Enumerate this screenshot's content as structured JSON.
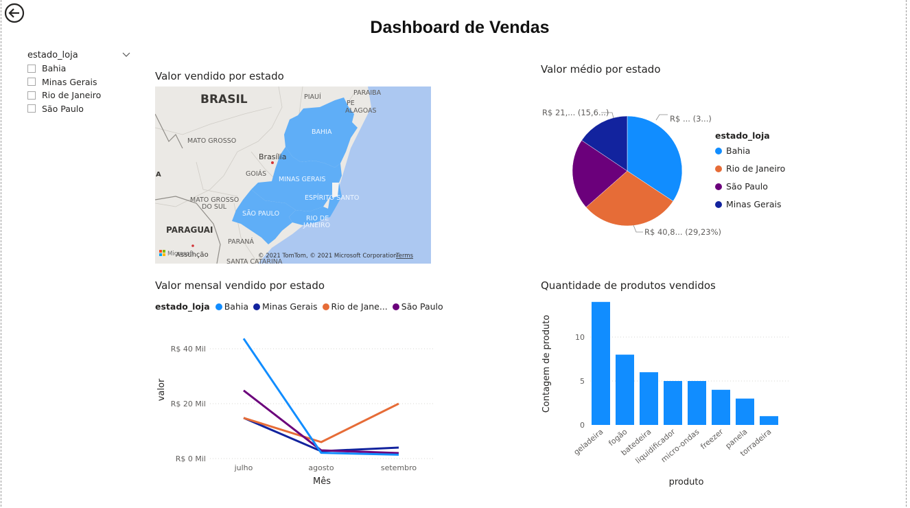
{
  "page": {
    "title": "Dashboard de Vendas"
  },
  "colors": {
    "bahia": "#118DFF",
    "minas": "#12239E",
    "rio": "#E66C37",
    "sp": "#6B007B",
    "map_highlight": "#5FAEF7",
    "water": "#ACC8F1"
  },
  "slicer": {
    "title": "estado_loja",
    "items": [
      "Bahia",
      "Minas Gerais",
      "Rio de Janeiro",
      "São Paulo"
    ]
  },
  "map_visual": {
    "title": "Valor vendido por estado",
    "labels": {
      "brasil": "BRASIL",
      "paraiba": "PARAIBA",
      "piaui": "PIAUÍ",
      "pe": "PE",
      "alagoas": "ALAGOAS",
      "bahia": "BAHIA",
      "mato_grosso": "MATO GROSSO",
      "brasilia": "Brasília",
      "goias": "GOIÁS",
      "minas": "MINAS GERAIS",
      "espirito": "ESPÍRITO SANTO",
      "ms1": "MATO GROSSO",
      "ms2": "DO SUL",
      "sao_paulo": "SÃO PAULO",
      "rio1": "RIO DE",
      "rio2": "JANEIRO",
      "paraguai": "PARAGUAI",
      "parana": "PARANÁ",
      "santa": "SANTA CATARINA",
      "assuncao": "Assunção",
      "a": "A"
    },
    "attribution": "© 2021 TomTom, © 2021 Microsoft Corporation",
    "terms": "Terms",
    "brand": "Microsoft"
  },
  "pie_visual": {
    "title": "Valor médio por estado",
    "legend_title": "estado_loja",
    "data_labels": {
      "sp_mg": "R$ 21,... (15,6...)",
      "bahia": "R$ ... (3...)",
      "rio": "R$ 40,8... (29,23%)"
    },
    "legend": [
      "Bahia",
      "Rio de Janeiro",
      "São Paulo",
      "Minas Gerais"
    ]
  },
  "line_visual": {
    "title": "Valor mensal vendido por estado",
    "legend_title": "estado_loja",
    "legend": [
      "Bahia",
      "Minas Gerais",
      "Rio de Jane...",
      "São Paulo"
    ],
    "xlabel": "Mês",
    "ylabel": "valor",
    "yticks": [
      "R$ 0 Mil",
      "R$ 20 Mil",
      "R$ 40 Mil"
    ]
  },
  "bar_visual": {
    "title": "Quantidade de produtos vendidos",
    "xlabel": "produto",
    "ylabel": "Contagem de produto"
  },
  "chart_data": [
    {
      "type": "pie",
      "title": "Valor médio por estado",
      "categories": [
        "Bahia",
        "Rio de Janeiro",
        "São Paulo",
        "Minas Gerais"
      ],
      "values": [
        34.3,
        29.23,
        20.9,
        15.6
      ]
    },
    {
      "type": "line",
      "title": "Valor mensal vendido por estado",
      "x": [
        "julho",
        "agosto",
        "setembro"
      ],
      "ylim": [
        0,
        45000
      ],
      "yticks": [
        0,
        20000,
        40000
      ],
      "series": [
        {
          "name": "Bahia",
          "values": [
            43700,
            2100,
            1400
          ]
        },
        {
          "name": "Minas Gerais",
          "values": [
            14800,
            2700,
            4000
          ]
        },
        {
          "name": "Rio de Jane...",
          "values": [
            14800,
            6000,
            20000
          ]
        },
        {
          "name": "São Paulo",
          "values": [
            24800,
            3000,
            2000
          ]
        }
      ]
    },
    {
      "type": "bar",
      "title": "Quantidade de produtos vendidos",
      "categories": [
        "geladeira",
        "fogão",
        "batedeira",
        "liquidificador",
        "micro-ondas",
        "freezer",
        "panela",
        "torradeira"
      ],
      "values": [
        14,
        8,
        6,
        5,
        5,
        4,
        3,
        1
      ],
      "ylim": [
        0,
        14
      ],
      "yticks": [
        0,
        5,
        10
      ],
      "grid": true
    }
  ]
}
